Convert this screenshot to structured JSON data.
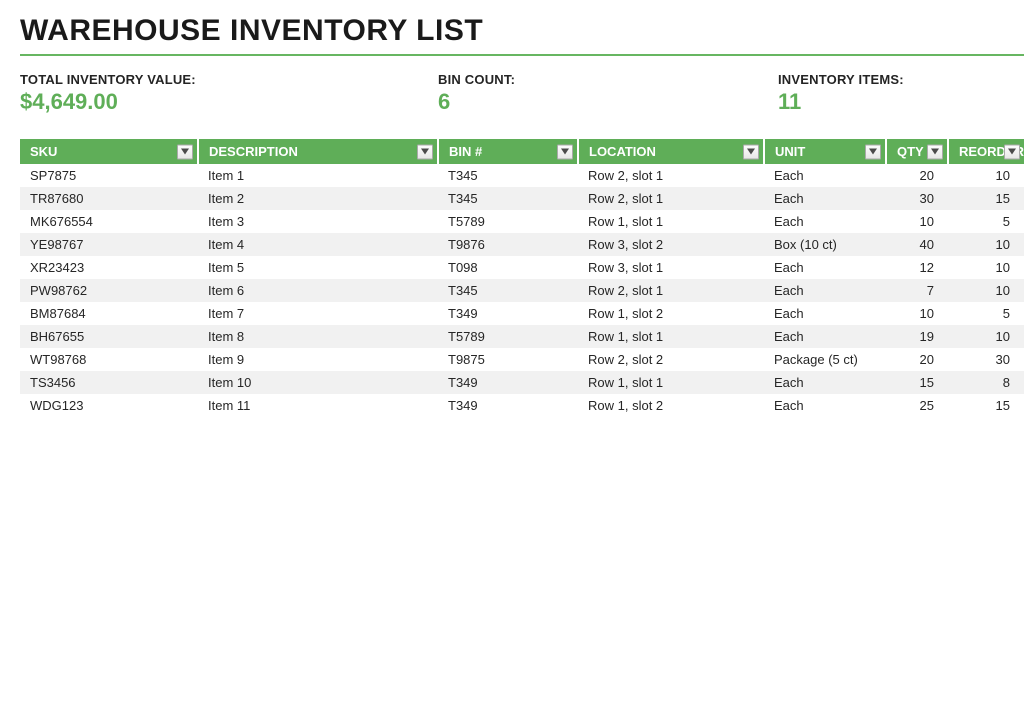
{
  "colors": {
    "accent": "#5fae58",
    "header_bg": "#5fae58",
    "header_fg": "#ffffff",
    "row_alt": "#f1f1f1",
    "row_base": "#ffffff",
    "title": "#1a1a1a",
    "divider": "#67b661"
  },
  "title": "WAREHOUSE INVENTORY LIST",
  "summary": {
    "total_label": "TOTAL INVENTORY VALUE:",
    "total_value": "$4,649.00",
    "bin_label": "BIN COUNT:",
    "bin_value": "6",
    "items_label": "INVENTORY ITEMS:",
    "items_value": "11"
  },
  "columns": [
    {
      "key": "sku",
      "label": "SKU",
      "align": "left"
    },
    {
      "key": "desc",
      "label": "DESCRIPTION",
      "align": "left"
    },
    {
      "key": "bin",
      "label": "BIN #",
      "align": "left"
    },
    {
      "key": "location",
      "label": "LOCATION",
      "align": "left"
    },
    {
      "key": "unit",
      "label": "UNIT",
      "align": "left"
    },
    {
      "key": "qty",
      "label": "QTY",
      "align": "right"
    },
    {
      "key": "reorder",
      "label": "REORDER",
      "align": "right"
    }
  ],
  "rows": [
    {
      "sku": "SP7875",
      "desc": "Item 1",
      "bin": "T345",
      "location": "Row 2, slot 1",
      "unit": "Each",
      "qty": "20",
      "reorder": "10"
    },
    {
      "sku": "TR87680",
      "desc": "Item 2",
      "bin": "T345",
      "location": "Row 2, slot 1",
      "unit": "Each",
      "qty": "30",
      "reorder": "15"
    },
    {
      "sku": "MK676554",
      "desc": "Item 3",
      "bin": "T5789",
      "location": "Row 1, slot 1",
      "unit": "Each",
      "qty": "10",
      "reorder": "5"
    },
    {
      "sku": "YE98767",
      "desc": "Item 4",
      "bin": "T9876",
      "location": "Row 3, slot 2",
      "unit": "Box (10 ct)",
      "qty": "40",
      "reorder": "10"
    },
    {
      "sku": "XR23423",
      "desc": "Item 5",
      "bin": "T098",
      "location": "Row 3, slot 1",
      "unit": "Each",
      "qty": "12",
      "reorder": "10"
    },
    {
      "sku": "PW98762",
      "desc": "Item 6",
      "bin": "T345",
      "location": "Row 2, slot 1",
      "unit": "Each",
      "qty": "7",
      "reorder": "10"
    },
    {
      "sku": "BM87684",
      "desc": "Item 7",
      "bin": "T349",
      "location": "Row 1, slot 2",
      "unit": "Each",
      "qty": "10",
      "reorder": "5"
    },
    {
      "sku": "BH67655",
      "desc": "Item 8",
      "bin": "T5789",
      "location": "Row 1, slot 1",
      "unit": "Each",
      "qty": "19",
      "reorder": "10"
    },
    {
      "sku": "WT98768",
      "desc": "Item 9",
      "bin": "T9875",
      "location": "Row 2, slot 2",
      "unit": "Package (5 ct)",
      "qty": "20",
      "reorder": "30"
    },
    {
      "sku": "TS3456",
      "desc": "Item 10",
      "bin": "T349",
      "location": "Row 1, slot 1",
      "unit": "Each",
      "qty": "15",
      "reorder": "8"
    },
    {
      "sku": "WDG123",
      "desc": "Item 11",
      "bin": "T349",
      "location": "Row 1, slot 2",
      "unit": "Each",
      "qty": "25",
      "reorder": "15"
    }
  ]
}
